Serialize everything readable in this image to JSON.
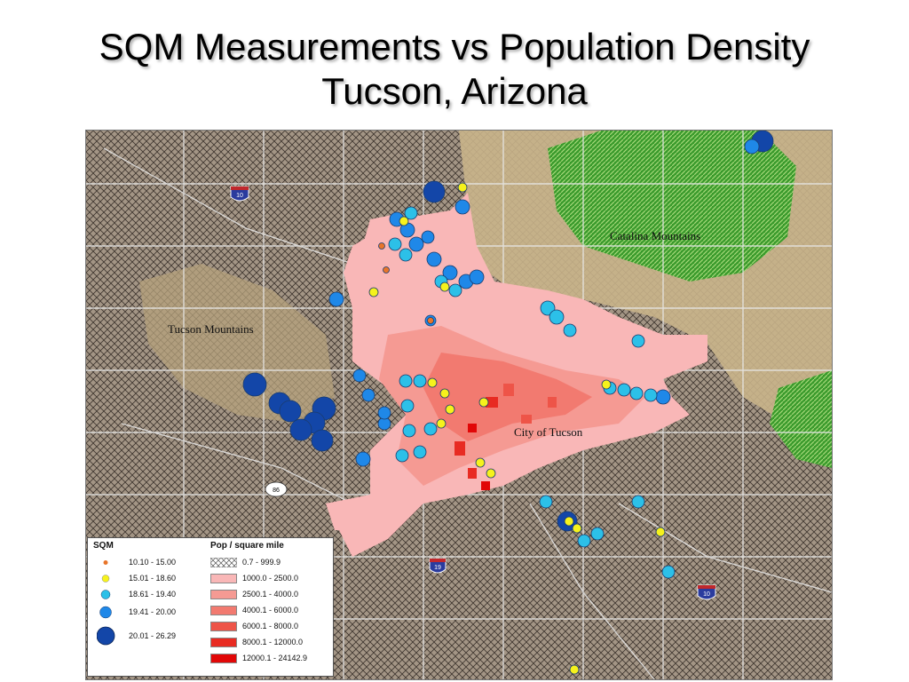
{
  "title": {
    "line1": "SQM Measurements vs Population Density",
    "line2": "Tucson, Arizona"
  },
  "map": {
    "labels": {
      "catalina": "Catalina Mountains",
      "tucson_mountains": "Tucson Mountains",
      "city": "City of Tucson"
    },
    "highway_shields": [
      "10",
      "10",
      "86",
      "19"
    ]
  },
  "legend": {
    "sqm_title": "SQM",
    "sqm_classes": [
      {
        "label": "10.10 - 15.00",
        "color": "#e8752a",
        "icon": "small-orange-dot"
      },
      {
        "label": "15.01 - 18.60",
        "color": "#f6f21c",
        "icon": "yellow-dot"
      },
      {
        "label": "18.61 - 19.40",
        "color": "#2cc0e8",
        "icon": "cyan-dot"
      },
      {
        "label": "19.41 - 20.00",
        "color": "#1f88e8",
        "icon": "blue-dot"
      },
      {
        "label": "20.01 - 26.29",
        "color": "#1346a8",
        "icon": "large-navy-dot"
      }
    ],
    "pop_title": "Pop / square mile",
    "pop_classes": [
      {
        "label": "0.7 - 999.9",
        "color": "hatch"
      },
      {
        "label": "1000.0 - 2500.0",
        "color": "#f9b7b7"
      },
      {
        "label": "2500.1 - 4000.0",
        "color": "#f59a93"
      },
      {
        "label": "4000.1 - 6000.0",
        "color": "#f27a70"
      },
      {
        "label": "6000.1 - 8000.0",
        "color": "#ee5448"
      },
      {
        "label": "8000.1 - 12000.0",
        "color": "#e82b22"
      },
      {
        "label": "12000.1 - 24142.9",
        "color": "#e10707"
      }
    ]
  }
}
